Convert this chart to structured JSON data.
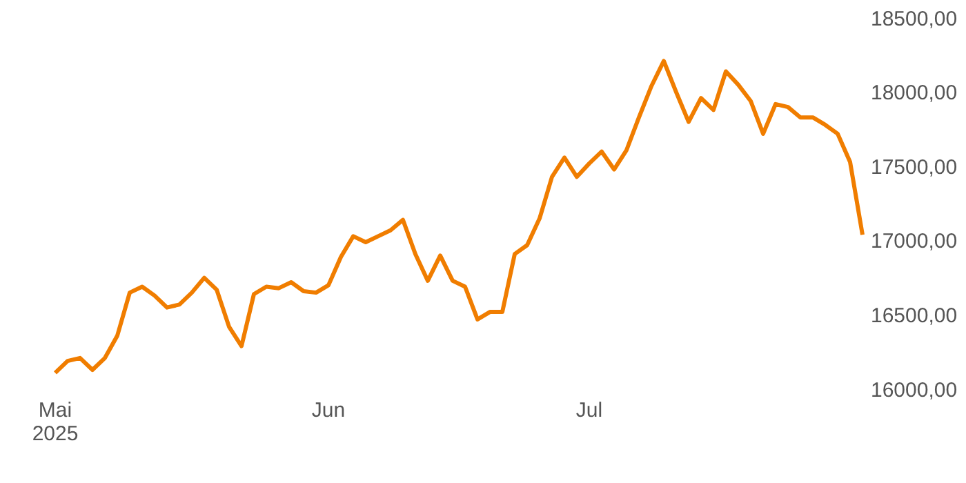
{
  "chart_data": {
    "type": "line",
    "categories": [
      "Mai 2025",
      null,
      null,
      null,
      null,
      null,
      null,
      null,
      null,
      null,
      null,
      null,
      null,
      null,
      null,
      null,
      null,
      null,
      null,
      null,
      null,
      null,
      "Jun",
      null,
      null,
      null,
      null,
      null,
      null,
      null,
      null,
      null,
      null,
      null,
      null,
      null,
      null,
      null,
      null,
      null,
      null,
      null,
      null,
      "Jul",
      null,
      null,
      null,
      null,
      null,
      null,
      null,
      null,
      null,
      null,
      null,
      null,
      null,
      null,
      null,
      null,
      null,
      null,
      null,
      null,
      null,
      null
    ],
    "series": [
      {
        "color": "#f07d00",
        "values": [
          16110,
          16190,
          16210,
          16130,
          16210,
          16360,
          16650,
          16690,
          16630,
          16550,
          16570,
          16650,
          16750,
          16670,
          16420,
          16290,
          16640,
          16690,
          16680,
          16720,
          16660,
          16650,
          16700,
          16890,
          17030,
          16990,
          17030,
          17070,
          17140,
          16910,
          16730,
          16900,
          16730,
          16690,
          16470,
          16520,
          16520,
          16910,
          16970,
          17150,
          17430,
          17560,
          17430,
          17520,
          17600,
          17480,
          17610,
          17830,
          18040,
          18210,
          18000,
          17800,
          17960,
          17880,
          18140,
          18050,
          17940,
          17720,
          17920,
          17900,
          17830,
          17830,
          17780,
          17720,
          17530,
          17040
        ]
      }
    ],
    "ylim": [
      16000,
      18500
    ],
    "yticks": [
      {
        "value": 16000,
        "label": "16000,00"
      },
      {
        "value": 16500,
        "label": "16500,00"
      },
      {
        "value": 17000,
        "label": "17000,00"
      },
      {
        "value": 17500,
        "label": "17500,00"
      },
      {
        "value": 18000,
        "label": "18000,00"
      },
      {
        "value": 18500,
        "label": "18500,00"
      }
    ],
    "grid": false,
    "legend": false,
    "marker": "none",
    "line_style": "solid"
  }
}
